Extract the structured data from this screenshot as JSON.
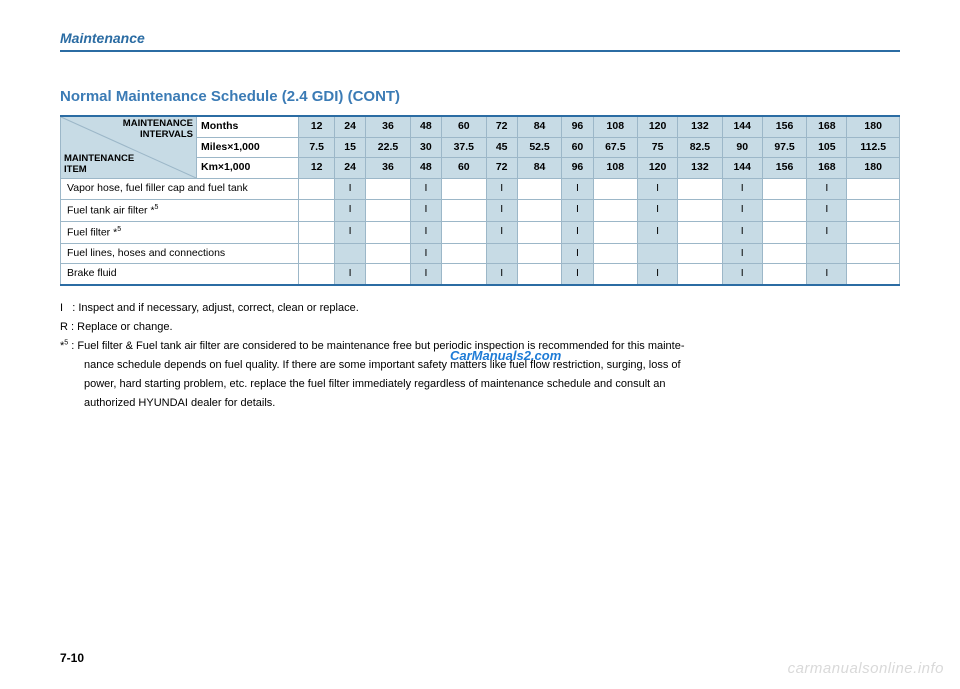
{
  "page": {
    "section": "Maintenance",
    "title": "Normal Maintenance Schedule (2.4 GDI) (CONT)",
    "corner_top": "MAINTENANCE\nINTERVALS",
    "corner_bot": "MAINTENANCE\nITEM",
    "header_rows": [
      {
        "label": "Months",
        "vals": [
          "12",
          "24",
          "36",
          "48",
          "60",
          "72",
          "84",
          "96",
          "108",
          "120",
          "132",
          "144",
          "156",
          "168",
          "180"
        ]
      },
      {
        "label": "Miles×1,000",
        "vals": [
          "7.5",
          "15",
          "22.5",
          "30",
          "37.5",
          "45",
          "52.5",
          "60",
          "67.5",
          "75",
          "82.5",
          "90",
          "97.5",
          "105",
          "112.5"
        ]
      },
      {
        "label": "Km×1,000",
        "vals": [
          "12",
          "24",
          "36",
          "48",
          "60",
          "72",
          "84",
          "96",
          "108",
          "120",
          "132",
          "144",
          "156",
          "168",
          "180"
        ]
      }
    ],
    "items": [
      {
        "label": "Vapor hose, fuel filler cap and fuel tank",
        "sup": "",
        "cells": [
          "",
          "I",
          "",
          "I",
          "",
          "I",
          "",
          "I",
          "",
          "I",
          "",
          "I",
          "",
          "I",
          ""
        ]
      },
      {
        "label": "Fuel tank air filter *",
        "sup": "5",
        "cells": [
          "",
          "I",
          "",
          "I",
          "",
          "I",
          "",
          "I",
          "",
          "I",
          "",
          "I",
          "",
          "I",
          ""
        ]
      },
      {
        "label": "Fuel filter *",
        "sup": "5",
        "cells": [
          "",
          "I",
          "",
          "I",
          "",
          "I",
          "",
          "I",
          "",
          "I",
          "",
          "I",
          "",
          "I",
          ""
        ]
      },
      {
        "label": "Fuel lines, hoses and connections",
        "sup": "",
        "cells": [
          "",
          "",
          "",
          "I",
          "",
          "",
          "",
          "I",
          "",
          "",
          "",
          "I",
          "",
          "",
          ""
        ]
      },
      {
        "label": "Brake fluid",
        "sup": "",
        "cells": [
          "",
          "I",
          "",
          "I",
          "",
          "I",
          "",
          "I",
          "",
          "I",
          "",
          "I",
          "",
          "I",
          ""
        ]
      }
    ],
    "legend": {
      "I": "Inspect and if necessary, adjust, correct, clean or replace.",
      "R": "Replace or change.",
      "star5_prefix": "*",
      "star5_sup": "5",
      "star5_text": ": Fuel filter & Fuel tank air filter are considered to be maintenance free but periodic inspection is recommended for this mainte-",
      "star5_cont1": "nance schedule depends on fuel quality. If there are some important safety matters like fuel flow restriction, surging, loss of",
      "star5_cont2": "power, hard starting problem, etc. replace the fuel filter immediately regardless of maintenance schedule and consult an",
      "star5_cont3": "authorized HYUNDAI dealer for details."
    },
    "watermark_blue": "CarManuals2.com",
    "watermark_gray": "carmanualsonline.info",
    "page_num": "7-10",
    "colors": {
      "accent": "#2b6ca3",
      "shade": "#c7dbe5",
      "border": "#9cb7c8"
    }
  }
}
